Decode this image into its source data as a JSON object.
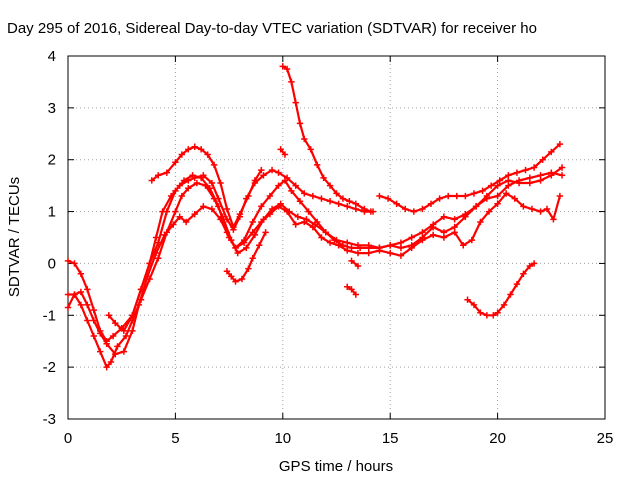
{
  "chart_data": {
    "type": "scatter",
    "title": "Day 295 of 2016, Sidereal Day-to-day VTEC variation (SDTVAR) for receiver ho",
    "xlabel": "GPS time / hours",
    "ylabel": "SDTVAR / TECUs",
    "xlim": [
      0,
      25
    ],
    "ylim": [
      -3,
      4
    ],
    "x_ticks": [
      "0",
      "5",
      "10",
      "15",
      "20",
      "25"
    ],
    "y_ticks": [
      "-3",
      "-2",
      "-1",
      "0",
      "1",
      "2",
      "3",
      "4"
    ],
    "grid": true,
    "marker": "plus",
    "color": "#ff0000",
    "series": [
      {
        "points": [
          [
            0.0,
            0.05
          ],
          [
            0.3,
            0.0
          ],
          [
            0.6,
            -0.2
          ],
          [
            0.9,
            -0.5
          ],
          [
            1.2,
            -0.9
          ],
          [
            1.5,
            -1.3
          ],
          [
            1.8,
            -1.5
          ],
          [
            2.1,
            -1.4
          ],
          [
            2.5,
            -1.25
          ],
          [
            3.0,
            -1.0
          ],
          [
            3.4,
            -0.5
          ],
          [
            3.8,
            0.0
          ],
          [
            4.2,
            0.4
          ],
          [
            4.6,
            1.0
          ],
          [
            5.0,
            1.4
          ],
          [
            5.4,
            1.6
          ],
          [
            5.8,
            1.7
          ],
          [
            6.2,
            1.65
          ],
          [
            6.6,
            1.45
          ],
          [
            7.0,
            1.1
          ],
          [
            7.4,
            0.6
          ],
          [
            7.8,
            0.3
          ],
          [
            8.2,
            0.45
          ],
          [
            8.6,
            0.8
          ],
          [
            9.0,
            1.1
          ],
          [
            9.4,
            1.3
          ],
          [
            9.8,
            1.5
          ],
          [
            10.1,
            1.6
          ],
          [
            10.4,
            1.4
          ],
          [
            10.8,
            1.2
          ],
          [
            11.2,
            1.0
          ],
          [
            11.6,
            0.8
          ],
          [
            12.0,
            0.6
          ],
          [
            12.5,
            0.45
          ],
          [
            13.0,
            0.4
          ],
          [
            13.5,
            0.35
          ],
          [
            14.0,
            0.35
          ],
          [
            14.5,
            0.3
          ],
          [
            15.0,
            0.35
          ],
          [
            15.5,
            0.4
          ],
          [
            16.0,
            0.5
          ],
          [
            16.5,
            0.6
          ],
          [
            17.0,
            0.75
          ],
          [
            17.5,
            0.9
          ],
          [
            18.0,
            0.85
          ],
          [
            18.5,
            0.95
          ],
          [
            19.0,
            1.1
          ],
          [
            19.5,
            1.3
          ],
          [
            20.0,
            1.5
          ],
          [
            20.5,
            1.6
          ],
          [
            21.0,
            1.55
          ],
          [
            21.5,
            1.55
          ],
          [
            22.0,
            1.6
          ],
          [
            22.5,
            1.7
          ],
          [
            23.0,
            1.85
          ]
        ]
      },
      {
        "points": [
          [
            0.0,
            -0.6
          ],
          [
            0.3,
            -0.6
          ],
          [
            0.6,
            -0.8
          ],
          [
            0.9,
            -1.1
          ],
          [
            1.2,
            -1.4
          ],
          [
            1.5,
            -1.7
          ],
          [
            1.8,
            -2.0
          ],
          [
            2.0,
            -1.9
          ],
          [
            2.3,
            -1.6
          ],
          [
            2.7,
            -1.4
          ],
          [
            3.0,
            -1.1
          ],
          [
            3.4,
            -0.7
          ],
          [
            3.8,
            -0.3
          ],
          [
            4.2,
            0.1
          ],
          [
            4.6,
            0.6
          ],
          [
            5.0,
            1.0
          ],
          [
            5.3,
            1.3
          ],
          [
            5.6,
            1.45
          ],
          [
            6.0,
            1.55
          ],
          [
            6.4,
            1.5
          ],
          [
            6.8,
            1.25
          ],
          [
            7.2,
            0.9
          ],
          [
            7.6,
            0.45
          ],
          [
            7.9,
            0.2
          ],
          [
            8.3,
            0.3
          ],
          [
            8.7,
            0.55
          ],
          [
            9.1,
            0.85
          ],
          [
            9.5,
            1.05
          ],
          [
            9.9,
            1.15
          ],
          [
            10.3,
            1.0
          ],
          [
            10.7,
            0.9
          ],
          [
            11.1,
            0.85
          ],
          [
            11.5,
            0.75
          ],
          [
            12.0,
            0.6
          ],
          [
            12.4,
            0.45
          ],
          [
            12.8,
            0.35
          ],
          [
            13.2,
            0.3
          ],
          [
            13.6,
            0.3
          ],
          [
            14.0,
            0.3
          ],
          [
            14.5,
            0.3
          ],
          [
            15.0,
            0.35
          ],
          [
            15.5,
            0.3
          ],
          [
            16.0,
            0.35
          ],
          [
            16.5,
            0.5
          ],
          [
            17.0,
            0.7
          ],
          [
            17.5,
            0.6
          ],
          [
            18.0,
            0.7
          ],
          [
            18.5,
            0.9
          ],
          [
            19.0,
            1.1
          ],
          [
            19.5,
            1.25
          ],
          [
            20.0,
            1.3
          ],
          [
            20.5,
            1.5
          ],
          [
            21.0,
            1.6
          ],
          [
            21.5,
            1.65
          ],
          [
            22.0,
            1.7
          ],
          [
            22.5,
            1.75
          ],
          [
            23.0,
            1.7
          ]
        ]
      },
      {
        "points": [
          [
            0.0,
            -0.85
          ],
          [
            0.3,
            -0.6
          ],
          [
            0.6,
            -0.55
          ],
          [
            0.9,
            -0.8
          ],
          [
            1.2,
            -1.1
          ],
          [
            1.5,
            -1.35
          ],
          [
            1.8,
            -1.55
          ],
          [
            2.2,
            -1.75
          ],
          [
            2.6,
            -1.7
          ],
          [
            3.0,
            -1.3
          ],
          [
            3.3,
            -0.8
          ],
          [
            3.7,
            -0.25
          ],
          [
            4.1,
            0.2
          ],
          [
            4.5,
            0.55
          ],
          [
            4.9,
            0.75
          ],
          [
            5.2,
            0.9
          ],
          [
            5.5,
            0.8
          ],
          [
            5.9,
            0.95
          ],
          [
            6.3,
            1.1
          ],
          [
            6.7,
            1.05
          ],
          [
            7.1,
            0.85
          ],
          [
            7.5,
            0.5
          ],
          [
            7.8,
            0.3
          ],
          [
            8.2,
            0.4
          ],
          [
            8.6,
            0.6
          ],
          [
            9.0,
            0.8
          ],
          [
            9.4,
            0.95
          ],
          [
            9.8,
            1.1
          ],
          [
            10.2,
            1.0
          ],
          [
            10.6,
            0.75
          ],
          [
            11.0,
            0.8
          ],
          [
            11.4,
            0.7
          ],
          [
            11.8,
            0.5
          ],
          [
            12.2,
            0.4
          ],
          [
            12.6,
            0.35
          ],
          [
            13.0,
            0.25
          ],
          [
            13.5,
            0.2
          ],
          [
            14.0,
            0.2
          ],
          [
            14.5,
            0.25
          ],
          [
            15.0,
            0.2
          ],
          [
            15.5,
            0.15
          ],
          [
            16.0,
            0.3
          ],
          [
            16.5,
            0.45
          ],
          [
            17.0,
            0.55
          ],
          [
            17.5,
            0.5
          ],
          [
            18.0,
            0.6
          ],
          [
            18.4,
            0.35
          ],
          [
            18.8,
            0.45
          ],
          [
            19.2,
            0.8
          ],
          [
            19.6,
            1.0
          ],
          [
            20.0,
            1.15
          ],
          [
            20.4,
            1.35
          ],
          [
            20.8,
            1.25
          ],
          [
            21.2,
            1.1
          ],
          [
            21.6,
            1.05
          ],
          [
            22.0,
            1.0
          ],
          [
            22.3,
            1.05
          ],
          [
            22.6,
            0.85
          ],
          [
            22.9,
            1.3
          ]
        ]
      },
      {
        "points": [
          [
            1.9,
            -1.0
          ],
          [
            2.2,
            -1.15
          ],
          [
            2.6,
            -1.3
          ],
          [
            3.0,
            -1.0
          ],
          [
            3.4,
            -0.5
          ],
          [
            3.8,
            0.0
          ],
          [
            4.1,
            0.5
          ],
          [
            4.4,
            1.0
          ],
          [
            4.8,
            1.3
          ],
          [
            5.2,
            1.5
          ],
          [
            5.6,
            1.6
          ],
          [
            5.9,
            1.65
          ],
          [
            6.3,
            1.7
          ],
          [
            6.7,
            1.55
          ],
          [
            7.0,
            1.25
          ],
          [
            7.4,
            0.85
          ],
          [
            7.7,
            0.65
          ],
          [
            8.0,
            0.9
          ],
          [
            8.3,
            1.25
          ],
          [
            8.7,
            1.55
          ],
          [
            9.1,
            1.7
          ],
          [
            9.5,
            1.8
          ],
          [
            9.8,
            1.75
          ],
          [
            10.2,
            1.65
          ],
          [
            10.6,
            1.5
          ],
          [
            11.0,
            1.35
          ],
          [
            11.4,
            1.3
          ],
          [
            11.8,
            1.25
          ],
          [
            12.2,
            1.2
          ],
          [
            12.6,
            1.15
          ],
          [
            13.0,
            1.1
          ],
          [
            13.4,
            1.05
          ],
          [
            13.8,
            1.0
          ],
          [
            14.2,
            1.0
          ]
        ]
      },
      {
        "points": [
          [
            3.9,
            1.6
          ],
          [
            4.2,
            1.7
          ],
          [
            4.6,
            1.75
          ],
          [
            5.0,
            1.95
          ],
          [
            5.3,
            2.1
          ],
          [
            5.6,
            2.2
          ],
          [
            5.9,
            2.25
          ],
          [
            6.2,
            2.2
          ],
          [
            6.5,
            2.1
          ],
          [
            6.8,
            1.9
          ],
          [
            7.1,
            1.55
          ],
          [
            7.4,
            1.05
          ],
          [
            7.7,
            0.7
          ],
          [
            8.0,
            0.95
          ],
          [
            8.4,
            1.3
          ],
          [
            8.7,
            1.6
          ],
          [
            9.0,
            1.8
          ]
        ]
      },
      {
        "points": [
          [
            9.9,
            2.2
          ],
          [
            10.1,
            2.1
          ]
        ]
      },
      {
        "points": [
          [
            10.0,
            3.8
          ],
          [
            10.2,
            3.75
          ],
          [
            10.4,
            3.5
          ],
          [
            10.6,
            3.1
          ],
          [
            10.8,
            2.7
          ],
          [
            11.0,
            2.4
          ],
          [
            11.3,
            2.2
          ],
          [
            11.6,
            1.9
          ],
          [
            11.9,
            1.65
          ],
          [
            12.2,
            1.5
          ],
          [
            12.5,
            1.35
          ],
          [
            12.8,
            1.25
          ],
          [
            13.1,
            1.2
          ],
          [
            13.4,
            1.15
          ],
          [
            13.8,
            1.05
          ],
          [
            14.1,
            1.0
          ]
        ]
      },
      {
        "points": [
          [
            7.4,
            -0.15
          ],
          [
            7.6,
            -0.25
          ],
          [
            7.8,
            -0.35
          ],
          [
            8.1,
            -0.3
          ],
          [
            8.4,
            -0.1
          ],
          [
            8.6,
            0.1
          ],
          [
            8.9,
            0.35
          ],
          [
            9.2,
            0.6
          ]
        ]
      },
      {
        "points": [
          [
            14.5,
            1.3
          ],
          [
            14.9,
            1.25
          ],
          [
            15.3,
            1.15
          ],
          [
            15.7,
            1.05
          ],
          [
            16.1,
            1.0
          ],
          [
            16.5,
            1.05
          ],
          [
            16.9,
            1.15
          ],
          [
            17.3,
            1.25
          ],
          [
            17.7,
            1.3
          ],
          [
            18.1,
            1.3
          ],
          [
            18.5,
            1.3
          ],
          [
            18.9,
            1.35
          ],
          [
            19.3,
            1.4
          ],
          [
            19.7,
            1.5
          ],
          [
            20.1,
            1.6
          ],
          [
            20.5,
            1.7
          ],
          [
            20.9,
            1.75
          ],
          [
            21.3,
            1.8
          ],
          [
            21.7,
            1.85
          ],
          [
            22.1,
            2.0
          ],
          [
            22.5,
            2.15
          ],
          [
            22.9,
            2.3
          ]
        ]
      },
      {
        "points": [
          [
            13.0,
            -0.45
          ],
          [
            13.2,
            -0.5
          ],
          [
            13.4,
            -0.6
          ]
        ]
      },
      {
        "points": [
          [
            13.2,
            0.05
          ],
          [
            13.5,
            -0.05
          ]
        ]
      },
      {
        "points": [
          [
            18.6,
            -0.7
          ],
          [
            18.9,
            -0.8
          ],
          [
            19.2,
            -0.95
          ],
          [
            19.5,
            -1.0
          ],
          [
            19.8,
            -1.0
          ],
          [
            20.0,
            -0.95
          ],
          [
            20.3,
            -0.8
          ],
          [
            20.6,
            -0.6
          ],
          [
            20.9,
            -0.4
          ],
          [
            21.2,
            -0.2
          ],
          [
            21.5,
            -0.05
          ],
          [
            21.7,
            0.0
          ]
        ]
      }
    ]
  }
}
